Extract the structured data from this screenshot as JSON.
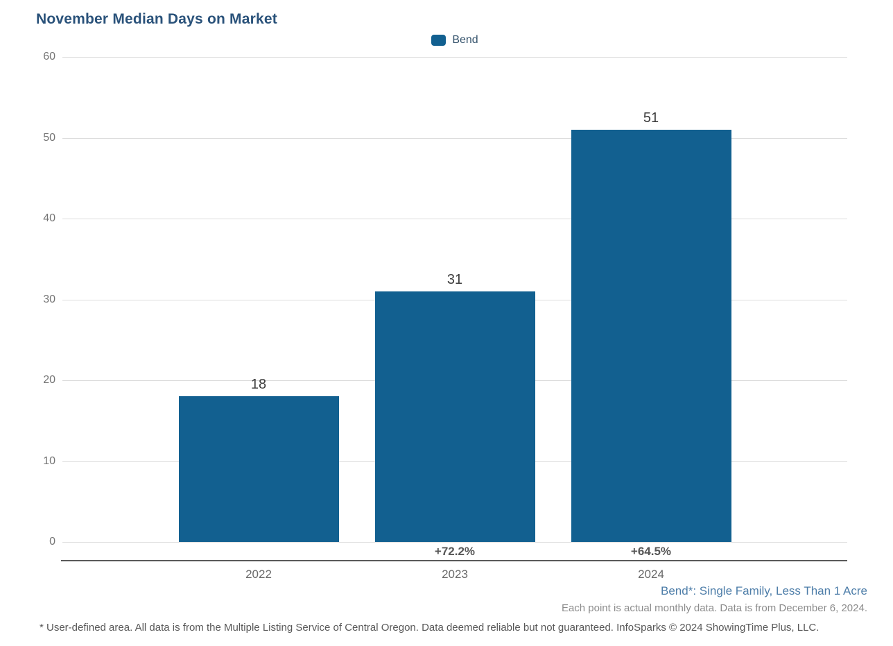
{
  "title": "November Median Days on Market",
  "legend": {
    "label": "Bend",
    "marker_color": "#126090"
  },
  "chart_data": {
    "type": "bar",
    "title": "November Median Days on Market",
    "series_name": "Bend",
    "categories": [
      "2022",
      "2023",
      "2024"
    ],
    "values": [
      18,
      31,
      51
    ],
    "value_labels": [
      "18",
      "31",
      "51"
    ],
    "pct_change_labels": [
      "",
      "+72.2%",
      "+64.5%"
    ],
    "xlabel": "",
    "ylabel": "",
    "ylim": [
      0,
      60
    ],
    "yticks": [
      0,
      10,
      20,
      30,
      40,
      50,
      60
    ],
    "grid": "horizontal",
    "legend_position": "top-center",
    "bar_color": "#126090"
  },
  "annotations": {
    "series_note": "Bend*: Single Family, Less Than 1 Acre",
    "data_note": "Each point is actual monthly data. Data is from December 6, 2024."
  },
  "footer": {
    "disclaimer": "* User-defined area. All data is from the Multiple Listing Service of Central Oregon. Data deemed reliable but not guaranteed. InfoSparks © 2024 ShowingTime Plus, LLC."
  },
  "colors": {
    "bar": "#126090",
    "title_text": "#2A527A",
    "series_note_text": "#4E7EA9",
    "gridline": "#DCDCDC",
    "axis_line": "#5A5A5A"
  }
}
